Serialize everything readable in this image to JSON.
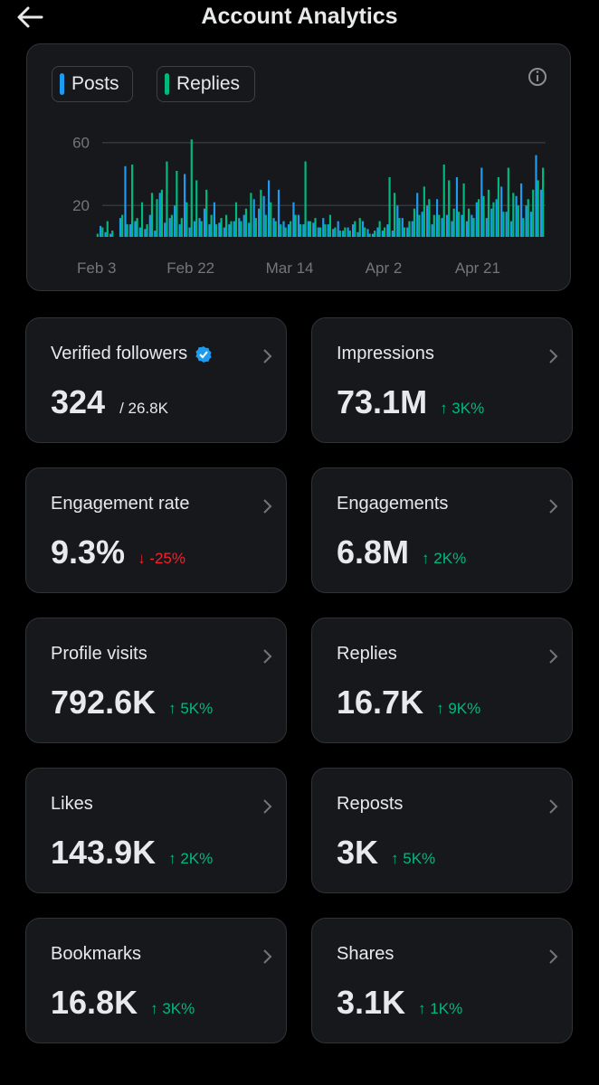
{
  "header": {
    "title": "Account Analytics"
  },
  "chart_data": {
    "type": "bar",
    "categories": [
      "Feb 3",
      null,
      null,
      null,
      null,
      null,
      null,
      null,
      null,
      null,
      null,
      null,
      null,
      null,
      null,
      null,
      null,
      null,
      null,
      "Feb 22",
      null,
      null,
      null,
      null,
      null,
      null,
      null,
      null,
      null,
      null,
      null,
      null,
      null,
      null,
      null,
      null,
      null,
      null,
      null,
      "Mar 14",
      null,
      null,
      null,
      null,
      null,
      null,
      null,
      null,
      null,
      null,
      null,
      null,
      null,
      null,
      null,
      null,
      null,
      null,
      "Apr 2",
      null,
      null,
      null,
      null,
      null,
      null,
      null,
      null,
      null,
      null,
      null,
      null,
      null,
      null,
      null,
      null,
      null,
      null,
      "Apr 21",
      null,
      null,
      null,
      null,
      null,
      null,
      null,
      null,
      null,
      null,
      null,
      null,
      null
    ],
    "series": [
      {
        "name": "Posts",
        "color": "#1d9bf0",
        "values": [
          0,
          7,
          3,
          2,
          0,
          12,
          45,
          8,
          10,
          6,
          5,
          14,
          4,
          28,
          9,
          12,
          20,
          8,
          40,
          6,
          10,
          12,
          18,
          8,
          22,
          9,
          6,
          8,
          10,
          12,
          14,
          9,
          24,
          18,
          26,
          36,
          12,
          30,
          10,
          8,
          22,
          14,
          8,
          10,
          9,
          6,
          12,
          8,
          5,
          10,
          4,
          6,
          8,
          3,
          10,
          5,
          2,
          6,
          4,
          8,
          4,
          20,
          12,
          6,
          10,
          28,
          16,
          20,
          8,
          24,
          12,
          14,
          10,
          38,
          14,
          10,
          14,
          22,
          44,
          12,
          18,
          24,
          32,
          16,
          10,
          26,
          34,
          20,
          16,
          52,
          30
        ]
      },
      {
        "name": "Replies",
        "color": "#00ba7c",
        "values": [
          2,
          6,
          10,
          4,
          0,
          14,
          8,
          46,
          12,
          22,
          8,
          28,
          24,
          30,
          48,
          14,
          42,
          12,
          22,
          62,
          36,
          10,
          30,
          14,
          8,
          12,
          14,
          10,
          22,
          10,
          18,
          28,
          12,
          30,
          14,
          22,
          10,
          8,
          6,
          10,
          14,
          8,
          48,
          10,
          12,
          6,
          8,
          14,
          6,
          4,
          6,
          4,
          10,
          12,
          6,
          2,
          4,
          10,
          6,
          38,
          28,
          12,
          6,
          10,
          18,
          14,
          32,
          24,
          14,
          14,
          46,
          36,
          18,
          16,
          34,
          18,
          12,
          24,
          26,
          30,
          22,
          38,
          16,
          44,
          28,
          20,
          12,
          24,
          30,
          36,
          44
        ]
      }
    ],
    "ylim": [
      0,
      65
    ],
    "yticks": [
      20,
      60
    ],
    "grid": true
  },
  "metrics": [
    {
      "label": "Verified followers",
      "value": "324",
      "total": "/ 26.8K",
      "verified": true
    },
    {
      "label": "Impressions",
      "value": "73.1M",
      "change": "3K%",
      "trend": "up"
    },
    {
      "label": "Engagement rate",
      "value": "9.3%",
      "change": "-25%",
      "trend": "down"
    },
    {
      "label": "Engagements",
      "value": "6.8M",
      "change": "2K%",
      "trend": "up"
    },
    {
      "label": "Profile visits",
      "value": "792.6K",
      "change": "5K%",
      "trend": "up"
    },
    {
      "label": "Replies",
      "value": "16.7K",
      "change": "9K%",
      "trend": "up"
    },
    {
      "label": "Likes",
      "value": "143.9K",
      "change": "2K%",
      "trend": "up"
    },
    {
      "label": "Reposts",
      "value": "3K",
      "change": "5K%",
      "trend": "up"
    },
    {
      "label": "Bookmarks",
      "value": "16.8K",
      "change": "3K%",
      "trend": "up"
    },
    {
      "label": "Shares",
      "value": "3.1K",
      "change": "1K%",
      "trend": "up"
    }
  ]
}
